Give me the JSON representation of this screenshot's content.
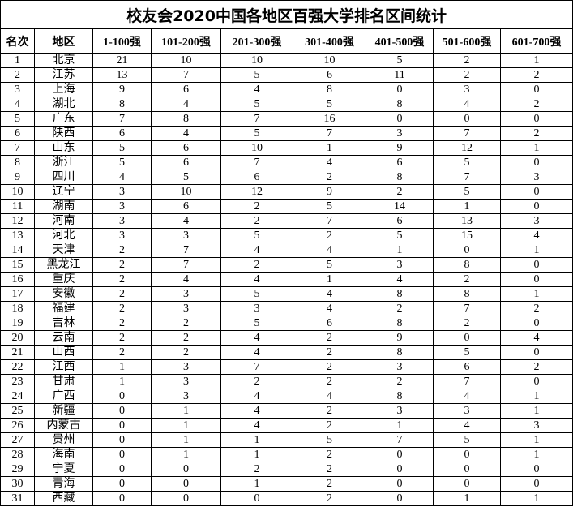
{
  "title": "校友会2020中国各地区百强大学排名区间统计",
  "headers": [
    "名次",
    "地区",
    "1-100强",
    "101-200强",
    "201-300强",
    "301-400强",
    "401-500强",
    "501-600强",
    "601-700强"
  ],
  "rows": [
    [
      "1",
      "北京",
      "21",
      "10",
      "10",
      "10",
      "5",
      "2",
      "1"
    ],
    [
      "2",
      "江苏",
      "13",
      "7",
      "5",
      "6",
      "11",
      "2",
      "2"
    ],
    [
      "3",
      "上海",
      "9",
      "6",
      "4",
      "8",
      "0",
      "3",
      "0"
    ],
    [
      "4",
      "湖北",
      "8",
      "4",
      "5",
      "5",
      "8",
      "4",
      "2"
    ],
    [
      "5",
      "广东",
      "7",
      "8",
      "7",
      "16",
      "0",
      "0",
      "0"
    ],
    [
      "6",
      "陕西",
      "6",
      "4",
      "5",
      "7",
      "3",
      "7",
      "2"
    ],
    [
      "7",
      "山东",
      "5",
      "6",
      "10",
      "1",
      "9",
      "12",
      "1"
    ],
    [
      "8",
      "浙江",
      "5",
      "6",
      "7",
      "4",
      "6",
      "5",
      "0"
    ],
    [
      "9",
      "四川",
      "4",
      "5",
      "6",
      "2",
      "8",
      "7",
      "3"
    ],
    [
      "10",
      "辽宁",
      "3",
      "10",
      "12",
      "9",
      "2",
      "5",
      "0"
    ],
    [
      "11",
      "湖南",
      "3",
      "6",
      "2",
      "5",
      "14",
      "1",
      "0"
    ],
    [
      "12",
      "河南",
      "3",
      "4",
      "2",
      "7",
      "6",
      "13",
      "3"
    ],
    [
      "13",
      "河北",
      "3",
      "3",
      "5",
      "2",
      "5",
      "15",
      "4"
    ],
    [
      "14",
      "天津",
      "2",
      "7",
      "4",
      "4",
      "1",
      "0",
      "1"
    ],
    [
      "15",
      "黑龙江",
      "2",
      "7",
      "2",
      "5",
      "3",
      "8",
      "0"
    ],
    [
      "16",
      "重庆",
      "2",
      "4",
      "4",
      "1",
      "4",
      "2",
      "0"
    ],
    [
      "17",
      "安徽",
      "2",
      "3",
      "5",
      "4",
      "8",
      "8",
      "1"
    ],
    [
      "18",
      "福建",
      "2",
      "3",
      "3",
      "4",
      "2",
      "7",
      "2"
    ],
    [
      "19",
      "吉林",
      "2",
      "2",
      "5",
      "6",
      "8",
      "2",
      "0"
    ],
    [
      "20",
      "云南",
      "2",
      "2",
      "4",
      "2",
      "9",
      "0",
      "4"
    ],
    [
      "21",
      "山西",
      "2",
      "2",
      "4",
      "2",
      "8",
      "5",
      "0"
    ],
    [
      "22",
      "江西",
      "1",
      "3",
      "7",
      "2",
      "3",
      "6",
      "2"
    ],
    [
      "23",
      "甘肃",
      "1",
      "3",
      "2",
      "2",
      "2",
      "7",
      "0"
    ],
    [
      "24",
      "广西",
      "0",
      "3",
      "4",
      "4",
      "8",
      "4",
      "1"
    ],
    [
      "25",
      "新疆",
      "0",
      "1",
      "4",
      "2",
      "3",
      "3",
      "1"
    ],
    [
      "26",
      "内蒙古",
      "0",
      "1",
      "4",
      "2",
      "1",
      "4",
      "3"
    ],
    [
      "27",
      "贵州",
      "0",
      "1",
      "1",
      "5",
      "7",
      "5",
      "1"
    ],
    [
      "28",
      "海南",
      "0",
      "1",
      "1",
      "2",
      "0",
      "0",
      "1"
    ],
    [
      "29",
      "宁夏",
      "0",
      "0",
      "2",
      "2",
      "0",
      "0",
      "0"
    ],
    [
      "30",
      "青海",
      "0",
      "0",
      "1",
      "2",
      "0",
      "0",
      "0"
    ],
    [
      "31",
      "西藏",
      "0",
      "0",
      "0",
      "2",
      "0",
      "1",
      "1"
    ]
  ]
}
